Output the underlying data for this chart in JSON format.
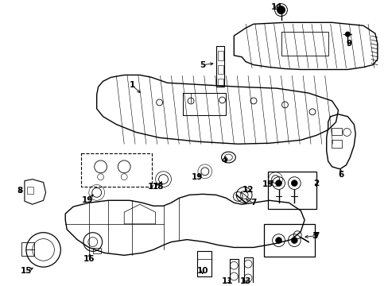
{
  "background_color": "#ffffff",
  "fig_width": 4.89,
  "fig_height": 3.6,
  "dpi": 100,
  "lw_main": 1.0,
  "lw_thin": 0.5,
  "label_fontsize": 7.5
}
